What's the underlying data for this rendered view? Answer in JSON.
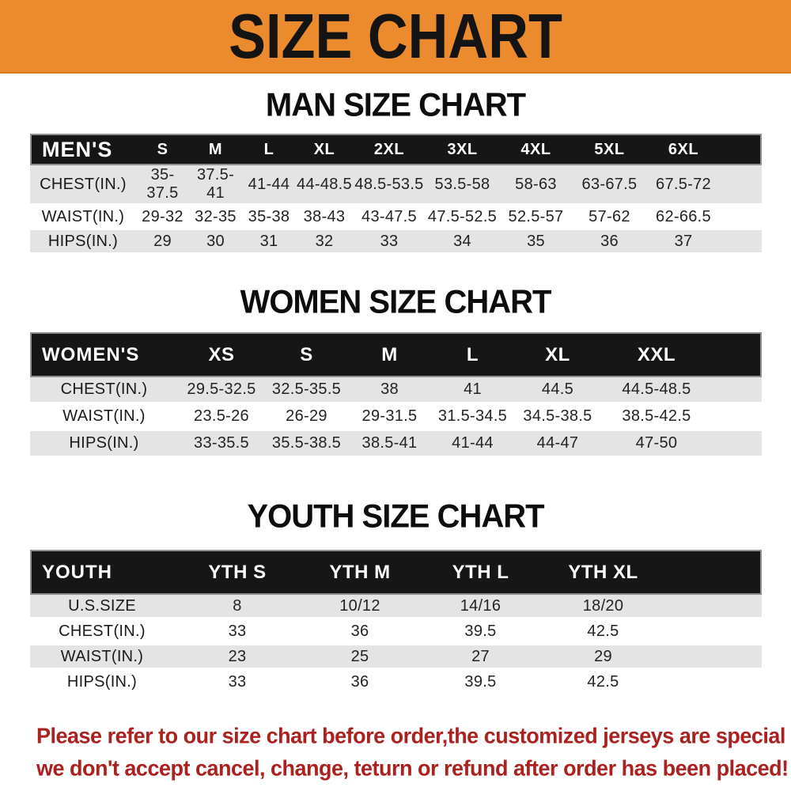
{
  "theme": {
    "banner_bg": "#EC8B2D",
    "header_bg": "#161616",
    "row_gray": "#E4E4E4",
    "red": "#AB211F"
  },
  "banner": {
    "title": "SIZE CHART"
  },
  "sections": [
    {
      "title": "MAN SIZE CHART",
      "header_label": "MEN'S",
      "columns": [
        "S",
        "M",
        "L",
        "XL",
        "2XL",
        "3XL",
        "4XL",
        "5XL",
        "6XL"
      ],
      "rows": [
        {
          "label": "CHEST(IN.)",
          "values": [
            "35-37.5",
            "37.5-41",
            "41-44",
            "44-48.5",
            "48.5-53.5",
            "53.5-58",
            "58-63",
            "63-67.5",
            "67.5-72"
          ]
        },
        {
          "label": "WAIST(IN.)",
          "values": [
            "29-32",
            "32-35",
            "35-38",
            "38-43",
            "43-47.5",
            "47.5-52.5",
            "52.5-57",
            "57-62",
            "62-66.5"
          ]
        },
        {
          "label": "HIPS(IN.)",
          "values": [
            "29",
            "30",
            "31",
            "32",
            "33",
            "34",
            "35",
            "36",
            "37"
          ]
        }
      ]
    },
    {
      "title": "WOMEN SIZE CHART",
      "header_label": "WOMEN'S",
      "columns": [
        "XS",
        "S",
        "M",
        "L",
        "XL",
        "XXL"
      ],
      "rows": [
        {
          "label": "CHEST(IN.)",
          "values": [
            "29.5-32.5",
            "32.5-35.5",
            "38",
            "41",
            "44.5",
            "44.5-48.5"
          ]
        },
        {
          "label": "WAIST(IN.)",
          "values": [
            "23.5-26",
            "26-29",
            "29-31.5",
            "31.5-34.5",
            "34.5-38.5",
            "38.5-42.5"
          ]
        },
        {
          "label": "HIPS(IN.)",
          "values": [
            "33-35.5",
            "35.5-38.5",
            "38.5-41",
            "41-44",
            "44-47",
            "47-50"
          ]
        }
      ]
    },
    {
      "title": "YOUTH SIZE CHART",
      "header_label": "YOUTH",
      "columns": [
        "YTH S",
        "YTH M",
        "YTH L",
        "YTH XL"
      ],
      "rows": [
        {
          "label": "U.S.SIZE",
          "values": [
            "8",
            "10/12",
            "14/16",
            "18/20"
          ]
        },
        {
          "label": "CHEST(IN.)",
          "values": [
            "33",
            "36",
            "39.5",
            "42.5"
          ]
        },
        {
          "label": "WAIST(IN.)",
          "values": [
            "23",
            "25",
            "27",
            "29"
          ]
        },
        {
          "label": "HIPS(IN.)",
          "values": [
            "33",
            "36",
            "39.5",
            "42.5"
          ]
        }
      ]
    }
  ],
  "disclaimer": {
    "line1": "Please refer to our size chart before order,the customized jerseys are special products,",
    "line2": "we don't accept cancel, change, teturn or refund after order has been placed!"
  }
}
